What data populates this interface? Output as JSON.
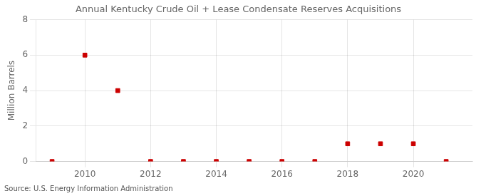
{
  "chart_data": {
    "type": "scatter",
    "title": "Annual Kentucky Crude Oil + Lease Condensate Reserves Acquisitions",
    "ylabel": "Million Barrels",
    "annotations": [
      "Source: U.S. Energy Information Administration"
    ],
    "x": [
      2009,
      2010,
      2011,
      2012,
      2013,
      2014,
      2015,
      2016,
      2017,
      2018,
      2019,
      2020,
      2021
    ],
    "values": [
      0.0,
      6.0,
      4.0,
      0.0,
      0.0,
      0.0,
      0.0,
      0.0,
      0.0,
      1.0,
      1.0,
      1.0,
      0.0
    ],
    "color": "#cc0000",
    "marker": "square",
    "xlim": [
      2008.5,
      2021.8
    ],
    "xticks": [
      2010,
      2012,
      2014,
      2016,
      2018,
      2020
    ],
    "ylim": [
      0,
      8
    ],
    "yticks": [
      0,
      2,
      4,
      6,
      8
    ],
    "grid": true
  }
}
